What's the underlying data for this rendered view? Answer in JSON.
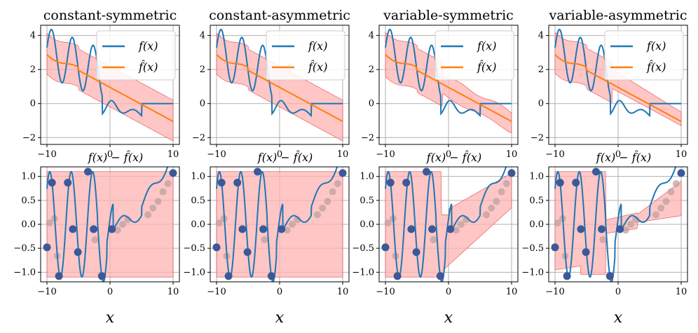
{
  "colors": {
    "f_line": "#1f77b4",
    "fhat_line": "#ff7f0e",
    "band_fill": "#ffb3b3",
    "band_edge": "#e8474a",
    "grid": "#b0b0b0",
    "residual_dots": "#3b5998",
    "faded_dots": "#b8a0a0"
  },
  "chart_data": [
    {
      "type": "line",
      "row": "top",
      "title": "constant-symmetric",
      "x": {
        "lim": [
          -11,
          11
        ],
        "ticks": [
          -10,
          0,
          10
        ],
        "tick_labels": [
          "−10",
          "0",
          "10"
        ]
      },
      "y": {
        "lim": [
          -2.4,
          4.6
        ],
        "ticks": [
          -2,
          0,
          2,
          4
        ],
        "tick_labels": [
          "−2",
          "0",
          "2",
          "4"
        ]
      },
      "series": [
        {
          "name": "f(x)",
          "formula": "f",
          "color": "#1f77b4"
        },
        {
          "name": "f̂(x)",
          "formula": "fhat",
          "color": "#ff7f0e"
        }
      ],
      "band": {
        "mode": "constant",
        "lower": 1.1,
        "upper": 1.1
      },
      "legend": {
        "position": "top-right",
        "entries": [
          "f(x)",
          "f̂(x)"
        ]
      },
      "bottom_label": ""
    },
    {
      "type": "line",
      "row": "top",
      "title": "constant-asymmetric",
      "x": {
        "lim": [
          -11,
          11
        ],
        "ticks": [
          -10,
          0,
          10
        ],
        "tick_labels": [
          "−10",
          "0",
          "10"
        ]
      },
      "y": {
        "lim": [
          -2.4,
          4.6
        ],
        "ticks": [
          -2,
          0,
          2,
          4
        ],
        "tick_labels": [
          "−2",
          "0",
          "2",
          "4"
        ]
      },
      "series": [
        {
          "name": "f(x)",
          "formula": "f",
          "color": "#1f77b4"
        },
        {
          "name": "f̂(x)",
          "formula": "fhat",
          "color": "#ff7f0e"
        }
      ],
      "band": {
        "mode": "constant",
        "lower": 1.1,
        "upper": 1.1
      },
      "legend": {
        "position": "top-right",
        "entries": [
          "f(x)",
          "f̂(x)"
        ]
      },
      "bottom_label": ""
    },
    {
      "type": "line",
      "row": "top",
      "title": "variable-symmetric",
      "x": {
        "lim": [
          -11,
          11
        ],
        "ticks": [
          -10,
          0,
          10
        ],
        "tick_labels": [
          "−10",
          "0",
          "10"
        ]
      },
      "y": {
        "lim": [
          -2.4,
          4.6
        ],
        "ticks": [
          -2,
          0,
          2,
          4
        ],
        "tick_labels": [
          "−2",
          "0",
          "2",
          "4"
        ]
      },
      "series": [
        {
          "name": "f(x)",
          "formula": "f",
          "color": "#1f77b4"
        },
        {
          "name": "f̂(x)",
          "formula": "fhat",
          "color": "#ff7f0e"
        }
      ],
      "band": {
        "mode": "variable-symmetric"
      },
      "legend": {
        "position": "top-right",
        "entries": [
          "f(x)",
          "f̂(x)"
        ]
      },
      "bottom_label": ""
    },
    {
      "type": "line",
      "row": "top",
      "title": "variable-asymmetric",
      "x": {
        "lim": [
          -11,
          11
        ],
        "ticks": [
          -10,
          0,
          10
        ],
        "tick_labels": [
          "−10",
          "0",
          "10"
        ]
      },
      "y": {
        "lim": [
          -2.4,
          4.6
        ],
        "ticks": [
          -2,
          0,
          2,
          4
        ],
        "tick_labels": [
          "−2",
          "0",
          "2",
          "4"
        ]
      },
      "series": [
        {
          "name": "f(x)",
          "formula": "f",
          "color": "#1f77b4"
        },
        {
          "name": "f̂(x)",
          "formula": "fhat",
          "color": "#ff7f0e"
        }
      ],
      "band": {
        "mode": "variable-asymmetric"
      },
      "legend": {
        "position": "top-right",
        "entries": [
          "f(x)",
          "f̂(x)"
        ]
      },
      "bottom_label": ""
    },
    {
      "type": "scatter",
      "row": "bottom",
      "title": "f(x) − f̂(x)",
      "xlabel": "x",
      "x": {
        "lim": [
          -11,
          11
        ],
        "ticks": [
          -10,
          0,
          10
        ],
        "tick_labels": [
          "−10",
          "0",
          "10"
        ]
      },
      "y": {
        "lim": [
          -1.2,
          1.2
        ],
        "ticks": [
          -1.0,
          -0.5,
          0.0,
          0.5,
          1.0
        ],
        "tick_labels": [
          "−1.0",
          "−0.5",
          "0.0",
          "0.5",
          "1.0"
        ]
      },
      "band": {
        "mode": "constant",
        "lower": -1.1,
        "upper": 1.1
      },
      "points": [
        [
          -10,
          -0.48
        ],
        [
          -9.2,
          0.87
        ],
        [
          -8.1,
          -1.08
        ],
        [
          -6.7,
          0.87
        ],
        [
          -5.9,
          -0.1
        ],
        [
          -5.1,
          -0.58
        ],
        [
          -3.5,
          1.1
        ],
        [
          -2.6,
          -0.1
        ],
        [
          -1.3,
          -1.08
        ],
        [
          0.3,
          -0.1
        ],
        [
          10,
          1.07
        ]
      ],
      "faded_points": [
        [
          -9.6,
          0.03
        ],
        [
          -8.8,
          0.12
        ],
        [
          -8.4,
          -0.66
        ],
        [
          -2.4,
          -0.32
        ],
        [
          1.2,
          -0.12
        ],
        [
          2.0,
          0.0
        ],
        [
          2.8,
          0.1
        ],
        [
          6.0,
          0.2
        ],
        [
          6.8,
          0.34
        ],
        [
          7.6,
          0.48
        ],
        [
          8.4,
          0.68
        ],
        [
          9.2,
          0.85
        ]
      ]
    },
    {
      "type": "scatter",
      "row": "bottom",
      "title": "f(x) − f̂(x)",
      "xlabel": "x",
      "x": {
        "lim": [
          -11,
          11
        ],
        "ticks": [
          -10,
          0,
          10
        ],
        "tick_labels": [
          "−10",
          "0",
          "10"
        ]
      },
      "y": {
        "lim": [
          -1.2,
          1.2
        ],
        "ticks": [
          -1.0,
          -0.5,
          0.0,
          0.5,
          1.0
        ],
        "tick_labels": [
          "−1.0",
          "−0.5",
          "0.0",
          "0.5",
          "1.0"
        ]
      },
      "band": {
        "mode": "constant",
        "lower": -1.1,
        "upper": 1.1
      },
      "points": [
        [
          -10,
          -0.48
        ],
        [
          -9.2,
          0.87
        ],
        [
          -8.1,
          -1.08
        ],
        [
          -6.7,
          0.87
        ],
        [
          -5.9,
          -0.1
        ],
        [
          -5.1,
          -0.58
        ],
        [
          -3.5,
          1.1
        ],
        [
          -2.6,
          -0.1
        ],
        [
          -1.3,
          -1.08
        ],
        [
          0.3,
          -0.1
        ],
        [
          10,
          1.07
        ]
      ],
      "faded_points": [
        [
          -9.6,
          0.03
        ],
        [
          -8.8,
          0.12
        ],
        [
          -8.4,
          -0.66
        ],
        [
          -2.4,
          -0.32
        ],
        [
          1.2,
          -0.12
        ],
        [
          2.0,
          0.0
        ],
        [
          2.8,
          0.1
        ],
        [
          6.0,
          0.2
        ],
        [
          6.8,
          0.34
        ],
        [
          7.6,
          0.48
        ],
        [
          8.4,
          0.68
        ],
        [
          9.2,
          0.85
        ]
      ]
    },
    {
      "type": "scatter",
      "row": "bottom",
      "title": "f(x) − f̂(x)",
      "xlabel": "x",
      "x": {
        "lim": [
          -11,
          11
        ],
        "ticks": [
          -10,
          0,
          10
        ],
        "tick_labels": [
          "−10",
          "0",
          "10"
        ]
      },
      "y": {
        "lim": [
          -1.2,
          1.2
        ],
        "ticks": [
          -1.0,
          -0.5,
          0.0,
          0.5,
          1.0
        ],
        "tick_labels": [
          "−1.0",
          "−0.5",
          "0.0",
          "0.5",
          "1.0"
        ]
      },
      "band": {
        "mode": "variable-symmetric"
      },
      "points": [
        [
          -10,
          -0.48
        ],
        [
          -9.2,
          0.87
        ],
        [
          -8.1,
          -1.08
        ],
        [
          -6.7,
          0.87
        ],
        [
          -5.9,
          -0.1
        ],
        [
          -5.1,
          -0.58
        ],
        [
          -3.5,
          1.1
        ],
        [
          -2.6,
          -0.1
        ],
        [
          -1.3,
          -1.08
        ],
        [
          0.3,
          -0.1
        ],
        [
          10,
          1.07
        ]
      ],
      "faded_points": [
        [
          -9.6,
          0.03
        ],
        [
          -8.8,
          0.12
        ],
        [
          -8.4,
          -0.66
        ],
        [
          -2.4,
          -0.32
        ],
        [
          1.2,
          -0.12
        ],
        [
          2.0,
          0.0
        ],
        [
          2.8,
          0.1
        ],
        [
          6.0,
          0.2
        ],
        [
          6.8,
          0.34
        ],
        [
          7.6,
          0.48
        ],
        [
          8.4,
          0.68
        ],
        [
          9.2,
          0.85
        ]
      ]
    },
    {
      "type": "scatter",
      "row": "bottom",
      "title": "f(x) − f̂(x)",
      "xlabel": "x",
      "x": {
        "lim": [
          -11,
          11
        ],
        "ticks": [
          -10,
          0,
          10
        ],
        "tick_labels": [
          "−10",
          "0",
          "10"
        ]
      },
      "y": {
        "lim": [
          -1.2,
          1.2
        ],
        "ticks": [
          -1.0,
          -0.5,
          0.0,
          0.5,
          1.0
        ],
        "tick_labels": [
          "−1.0",
          "−0.5",
          "0.0",
          "0.5",
          "1.0"
        ]
      },
      "band": {
        "mode": "variable-asymmetric"
      },
      "points": [
        [
          -10,
          -0.48
        ],
        [
          -9.2,
          0.87
        ],
        [
          -8.1,
          -1.08
        ],
        [
          -6.7,
          0.87
        ],
        [
          -5.9,
          -0.1
        ],
        [
          -5.1,
          -0.58
        ],
        [
          -3.5,
          1.1
        ],
        [
          -2.6,
          -0.1
        ],
        [
          -1.3,
          -1.08
        ],
        [
          0.3,
          -0.1
        ],
        [
          10,
          1.07
        ]
      ],
      "faded_points": [
        [
          -9.6,
          0.03
        ],
        [
          -8.8,
          0.12
        ],
        [
          -8.4,
          -0.66
        ],
        [
          -2.4,
          -0.32
        ],
        [
          1.2,
          -0.12
        ],
        [
          2.0,
          0.0
        ],
        [
          2.8,
          0.1
        ],
        [
          6.0,
          0.2
        ],
        [
          6.8,
          0.34
        ],
        [
          7.6,
          0.48
        ],
        [
          8.4,
          0.68
        ],
        [
          9.2,
          0.85
        ]
      ]
    }
  ]
}
